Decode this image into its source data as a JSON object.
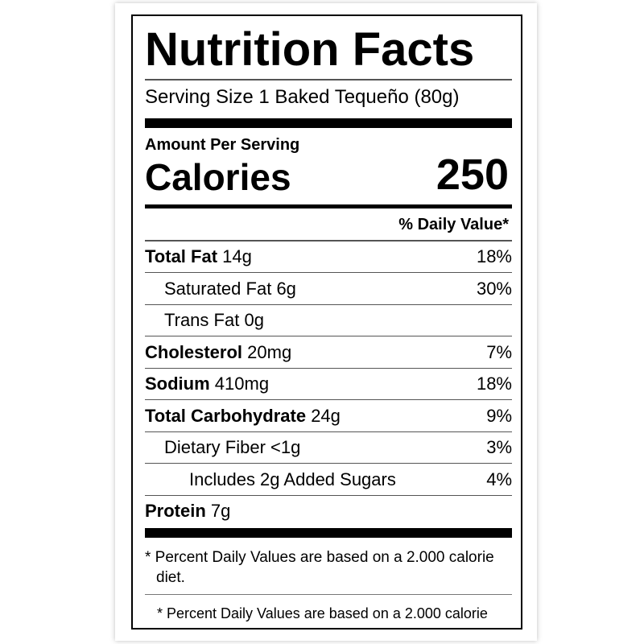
{
  "title": "Nutrition Facts",
  "serving_size": "Serving Size 1 Baked Tequeño (80g)",
  "amount_per_serving": "Amount Per Serving",
  "calories": {
    "label": "Calories",
    "value": 250
  },
  "daily_value_header": "% Daily Value*",
  "rows": [
    {
      "name": "Total Fat",
      "amount": "14g",
      "daily_value": "18%",
      "bold": true,
      "indent": 0
    },
    {
      "name": "Saturated Fat",
      "amount": "6g",
      "daily_value": "30%",
      "bold": false,
      "indent": 1
    },
    {
      "name": "Trans Fat",
      "amount": "0g",
      "bold": false,
      "indent": 1
    },
    {
      "name": "Cholesterol",
      "amount": "20mg",
      "daily_value": "7%",
      "bold": true,
      "indent": 0
    },
    {
      "name": "Sodium",
      "amount": "410mg",
      "daily_value": "18%",
      "bold": true,
      "indent": 0
    },
    {
      "name": "Total Carbohydrate",
      "amount": "24g",
      "daily_value": "9%",
      "bold": true,
      "indent": 0
    },
    {
      "name": "Dietary Fiber",
      "amount": "<1g",
      "daily_value": "3%",
      "bold": false,
      "indent": 1
    },
    {
      "name": "Includes 2g Added Sugars",
      "daily_value": "4%",
      "bold": false,
      "indent": 2
    },
    {
      "name": "Protein",
      "amount": "7g",
      "bold": true,
      "indent": 0
    }
  ],
  "footnote": "* Percent Daily Values are based on a 2.000 calorie diet.",
  "footnote_repeat": "* Percent Daily Values are based on a 2.000 calorie"
}
